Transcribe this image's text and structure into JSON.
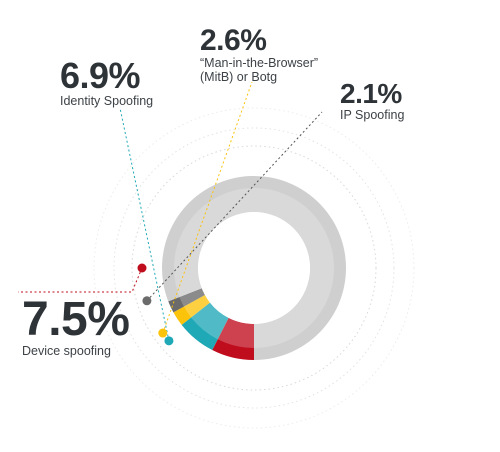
{
  "chart_data": {
    "type": "pie",
    "title": "",
    "slices": [
      {
        "label": "Device spoofing",
        "value": 7.5,
        "display": "7.5%",
        "color": "#c00d1e"
      },
      {
        "label": "Identity Spoofing",
        "value": 6.9,
        "display": "6.9%",
        "color": "#1fa8b6"
      },
      {
        "label": "“Man-in-the-Browser” (MitB) or Botg",
        "value": 2.6,
        "display": "2.6%",
        "color": "#fcc30b"
      },
      {
        "label": "IP Spoofing",
        "value": 2.1,
        "display": "2.1%",
        "color": "#6b6b6b"
      },
      {
        "label": "",
        "value": 80.9,
        "display": "",
        "color": "#cfcfcf"
      }
    ],
    "callouts": {
      "identity": {
        "pct": "6.9%",
        "label": "Identity Spoofing"
      },
      "mitb": {
        "pct": "2.6%",
        "label_line1": "“Man-in-the-Browser”",
        "label_line2": "(MitB) or Botg"
      },
      "ip": {
        "pct": "2.1%",
        "label": "IP Spoofing"
      },
      "device": {
        "pct": "7.5%",
        "label": "Device spoofing"
      }
    }
  }
}
